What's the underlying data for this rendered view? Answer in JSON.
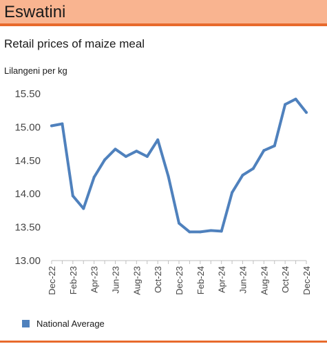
{
  "header": {
    "title": "Eswatini"
  },
  "chart_data": {
    "type": "line",
    "title": "Retail prices of maize meal",
    "ylabel": "Lilangeni per kg",
    "xlabel": "",
    "ylim": [
      13.0,
      15.5
    ],
    "yticks": [
      "13.00",
      "13.50",
      "14.00",
      "14.50",
      "15.00",
      "15.50"
    ],
    "ytick_values": [
      13.0,
      13.5,
      14.0,
      14.5,
      15.0,
      15.5
    ],
    "x": [
      "Dec-22",
      "Jan-23",
      "Feb-23",
      "Mar-23",
      "Apr-23",
      "May-23",
      "Jun-23",
      "Jul-23",
      "Aug-23",
      "Sep-23",
      "Oct-23",
      "Nov-23",
      "Dec-23",
      "Jan-24",
      "Feb-24",
      "Mar-24",
      "Apr-24",
      "May-24",
      "Jun-24",
      "Jul-24",
      "Aug-24",
      "Sep-24",
      "Oct-24",
      "Nov-24",
      "Dec-24"
    ],
    "xtick_labels": [
      "Dec-22",
      "Feb-23",
      "Apr-23",
      "Jun-23",
      "Aug-23",
      "Oct-23",
      "Dec-23",
      "Feb-24",
      "Apr-24",
      "Jun-24",
      "Aug-24",
      "Oct-24",
      "Dec-24"
    ],
    "series": [
      {
        "name": "National Average",
        "values": [
          15.02,
          15.05,
          13.97,
          13.78,
          14.25,
          14.51,
          14.67,
          14.56,
          14.64,
          14.56,
          14.81,
          14.26,
          13.56,
          13.43,
          13.43,
          13.45,
          13.44,
          14.02,
          14.28,
          14.38,
          14.65,
          14.72,
          15.34,
          15.42,
          15.22
        ]
      }
    ],
    "legend": "bottom-left",
    "grid": false,
    "colors": {
      "line": "#4f81bd",
      "axis": "#bfbfbf"
    }
  }
}
